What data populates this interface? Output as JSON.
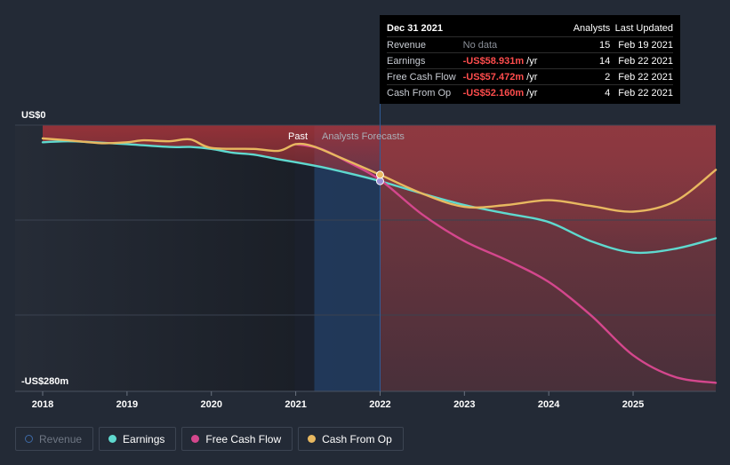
{
  "chart_data": {
    "type": "line",
    "y_top_label": "US$0",
    "y_bottom_label": "-US$280m",
    "ylim": [
      -280,
      0
    ],
    "xlim": [
      2018,
      2025.98
    ],
    "x_ticks": [
      "2018",
      "2019",
      "2020",
      "2021",
      "2022",
      "2023",
      "2024",
      "2025"
    ],
    "past_label": "Past",
    "forecast_label": "Analysts Forecasts",
    "divider_year": 2022,
    "highlight_start": 2021.22,
    "series": [
      {
        "name": "Earnings",
        "color": "#5fd9cf",
        "points": [
          [
            2018,
            -18
          ],
          [
            2018.3,
            -17
          ],
          [
            2018.6,
            -18
          ],
          [
            2019,
            -20
          ],
          [
            2019.5,
            -23
          ],
          [
            2019.75,
            -23
          ],
          [
            2020,
            -25
          ],
          [
            2020.25,
            -29
          ],
          [
            2020.5,
            -31
          ],
          [
            2020.8,
            -36
          ],
          [
            2021,
            -39
          ],
          [
            2021.3,
            -44
          ],
          [
            2021.6,
            -50
          ],
          [
            2022,
            -58.9
          ],
          [
            2022.5,
            -72
          ],
          [
            2023,
            -84
          ],
          [
            2023.5,
            -93
          ],
          [
            2024,
            -102
          ],
          [
            2024.5,
            -122
          ],
          [
            2025,
            -134
          ],
          [
            2025.5,
            -130
          ],
          [
            2025.98,
            -119
          ]
        ]
      },
      {
        "name": "Free Cash Flow",
        "color": "#d4478d",
        "points": [
          [
            2021,
            -20
          ],
          [
            2021.3,
            -25
          ],
          [
            2021.6,
            -38
          ],
          [
            2022,
            -57.5
          ],
          [
            2022.5,
            -94
          ],
          [
            2023,
            -122
          ],
          [
            2023.5,
            -142
          ],
          [
            2024,
            -165
          ],
          [
            2024.5,
            -200
          ],
          [
            2025,
            -242
          ],
          [
            2025.5,
            -265
          ],
          [
            2025.98,
            -271
          ]
        ]
      },
      {
        "name": "Cash From Op",
        "color": "#e8b860",
        "points": [
          [
            2018,
            -14
          ],
          [
            2018.3,
            -16
          ],
          [
            2018.7,
            -19
          ],
          [
            2019,
            -18
          ],
          [
            2019.2,
            -16
          ],
          [
            2019.5,
            -17
          ],
          [
            2019.75,
            -15
          ],
          [
            2020,
            -24
          ],
          [
            2020.5,
            -25
          ],
          [
            2020.8,
            -27
          ],
          [
            2021,
            -20
          ],
          [
            2021.2,
            -22
          ],
          [
            2021.5,
            -33
          ],
          [
            2022,
            -52.2
          ],
          [
            2022.5,
            -72
          ],
          [
            2023,
            -86
          ],
          [
            2023.5,
            -84
          ],
          [
            2024,
            -79
          ],
          [
            2024.5,
            -85
          ],
          [
            2025,
            -91
          ],
          [
            2025.5,
            -80
          ],
          [
            2025.98,
            -47
          ]
        ]
      }
    ],
    "markers": [
      {
        "series": "Earnings",
        "x": 2022,
        "y": -58.9,
        "color": "#9b8fd6"
      },
      {
        "series": "Cash From Op",
        "x": 2022,
        "y": -52.2,
        "color": "#e8b860"
      }
    ]
  },
  "tooltip": {
    "date": "Dec 31 2021",
    "headers": {
      "analysts": "Analysts",
      "updated": "Last Updated"
    },
    "rows": [
      {
        "label": "Revenue",
        "value": "No data",
        "unit": "",
        "analysts": "15",
        "updated": "Feb 19 2021"
      },
      {
        "label": "Earnings",
        "value": "-US$58.931m",
        "unit": " /yr",
        "analysts": "14",
        "updated": "Feb 22 2021"
      },
      {
        "label": "Free Cash Flow",
        "value": "-US$57.472m",
        "unit": " /yr",
        "analysts": "2",
        "updated": "Feb 22 2021"
      },
      {
        "label": "Cash From Op",
        "value": "-US$52.160m",
        "unit": " /yr",
        "analysts": "4",
        "updated": "Feb 22 2021"
      }
    ]
  },
  "legend": [
    {
      "label": "Revenue",
      "color": "#3e6aa6",
      "active": false
    },
    {
      "label": "Earnings",
      "color": "#5fd9cf",
      "active": true
    },
    {
      "label": "Free Cash Flow",
      "color": "#d4478d",
      "active": true
    },
    {
      "label": "Cash From Op",
      "color": "#e8b860",
      "active": true
    }
  ]
}
